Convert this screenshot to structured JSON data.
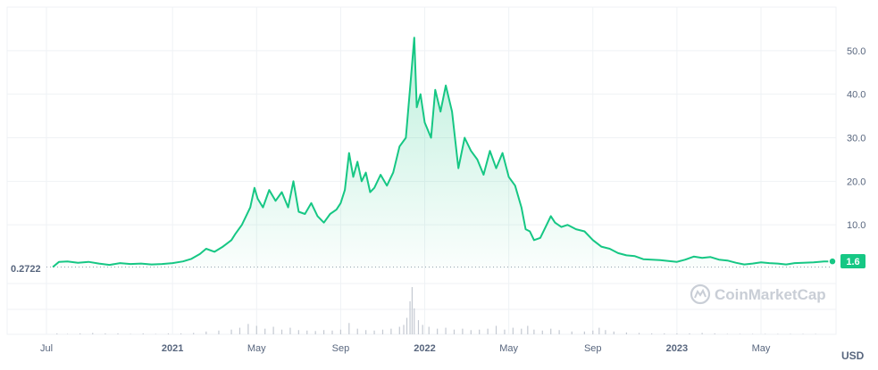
{
  "chart_data": {
    "type": "area",
    "currency_label": "USD",
    "watermark": "CoinMarketCap",
    "start_value_label": "0.2722",
    "current_value_label": "1.6",
    "colors": {
      "line": "#16c784",
      "badge": "#16c784",
      "text": "#58667e",
      "grid": "#eff2f5"
    },
    "ylim": [
      0,
      60
    ],
    "y_ticks": [
      "50.0",
      "40.0",
      "30.0",
      "20.0",
      "10.0"
    ],
    "x_ticks": [
      {
        "label": "Jul",
        "t": 0,
        "bold": false
      },
      {
        "label": "2021",
        "t": 6,
        "bold": true
      },
      {
        "label": "May",
        "t": 10,
        "bold": false
      },
      {
        "label": "Sep",
        "t": 14,
        "bold": false
      },
      {
        "label": "2022",
        "t": 18,
        "bold": true
      },
      {
        "label": "May",
        "t": 22,
        "bold": false
      },
      {
        "label": "Sep",
        "t": 26,
        "bold": false
      },
      {
        "label": "2023",
        "t": 30,
        "bold": true
      },
      {
        "label": "May",
        "t": 34,
        "bold": false
      }
    ],
    "t_range": [
      0,
      37.4
    ],
    "series": [
      {
        "values": [
          [
            0.3,
            0.3
          ],
          [
            0.6,
            1.5
          ],
          [
            1.0,
            1.6
          ],
          [
            1.5,
            1.3
          ],
          [
            2.0,
            1.5
          ],
          [
            2.5,
            1.1
          ],
          [
            3.0,
            0.8
          ],
          [
            3.5,
            1.2
          ],
          [
            4.0,
            1.0
          ],
          [
            4.5,
            1.1
          ],
          [
            5.0,
            0.9
          ],
          [
            5.5,
            1.0
          ],
          [
            6.0,
            1.2
          ],
          [
            6.5,
            1.6
          ],
          [
            6.9,
            2.2
          ],
          [
            7.3,
            3.3
          ],
          [
            7.6,
            4.5
          ],
          [
            8.0,
            3.8
          ],
          [
            8.4,
            5.0
          ],
          [
            8.8,
            6.5
          ],
          [
            9.0,
            8.0
          ],
          [
            9.3,
            10.0
          ],
          [
            9.5,
            12.0
          ],
          [
            9.7,
            14.0
          ],
          [
            9.9,
            18.5
          ],
          [
            10.05,
            16.0
          ],
          [
            10.3,
            14.0
          ],
          [
            10.6,
            18.0
          ],
          [
            10.9,
            15.5
          ],
          [
            11.2,
            17.5
          ],
          [
            11.5,
            14.0
          ],
          [
            11.75,
            20.0
          ],
          [
            12.0,
            13.0
          ],
          [
            12.3,
            12.5
          ],
          [
            12.6,
            15.0
          ],
          [
            12.9,
            12.0
          ],
          [
            13.2,
            10.5
          ],
          [
            13.5,
            12.5
          ],
          [
            13.8,
            13.5
          ],
          [
            14.0,
            15.0
          ],
          [
            14.2,
            18.0
          ],
          [
            14.4,
            26.5
          ],
          [
            14.6,
            21.0
          ],
          [
            14.8,
            24.5
          ],
          [
            15.0,
            20.0
          ],
          [
            15.2,
            22.0
          ],
          [
            15.4,
            17.5
          ],
          [
            15.6,
            18.5
          ],
          [
            15.9,
            21.5
          ],
          [
            16.2,
            19.0
          ],
          [
            16.5,
            22.0
          ],
          [
            16.8,
            28.0
          ],
          [
            17.1,
            30.0
          ],
          [
            17.35,
            44.0
          ],
          [
            17.5,
            53.0
          ],
          [
            17.62,
            37.0
          ],
          [
            17.8,
            40.0
          ],
          [
            18.0,
            33.5
          ],
          [
            18.3,
            30.0
          ],
          [
            18.5,
            41.0
          ],
          [
            18.75,
            36.0
          ],
          [
            19.0,
            42.0
          ],
          [
            19.3,
            36.0
          ],
          [
            19.6,
            23.0
          ],
          [
            19.9,
            30.0
          ],
          [
            20.2,
            27.0
          ],
          [
            20.5,
            25.0
          ],
          [
            20.8,
            21.5
          ],
          [
            21.1,
            27.0
          ],
          [
            21.4,
            23.0
          ],
          [
            21.7,
            26.5
          ],
          [
            22.0,
            21.0
          ],
          [
            22.3,
            19.0
          ],
          [
            22.6,
            14.0
          ],
          [
            22.8,
            9.0
          ],
          [
            23.0,
            8.5
          ],
          [
            23.2,
            6.5
          ],
          [
            23.5,
            7.0
          ],
          [
            23.8,
            10.0
          ],
          [
            24.0,
            12.0
          ],
          [
            24.2,
            10.5
          ],
          [
            24.5,
            9.5
          ],
          [
            24.8,
            10.0
          ],
          [
            25.2,
            9.0
          ],
          [
            25.6,
            8.5
          ],
          [
            26.0,
            6.5
          ],
          [
            26.4,
            5.0
          ],
          [
            26.8,
            4.5
          ],
          [
            27.2,
            3.5
          ],
          [
            27.6,
            3.0
          ],
          [
            28.0,
            2.8
          ],
          [
            28.4,
            2.1
          ],
          [
            28.8,
            2.0
          ],
          [
            29.2,
            1.9
          ],
          [
            29.6,
            1.7
          ],
          [
            30.0,
            1.5
          ],
          [
            30.4,
            2.0
          ],
          [
            30.8,
            2.7
          ],
          [
            31.2,
            2.4
          ],
          [
            31.6,
            2.6
          ],
          [
            32.0,
            2.0
          ],
          [
            32.4,
            1.8
          ],
          [
            32.8,
            1.3
          ],
          [
            33.2,
            0.9
          ],
          [
            33.6,
            1.1
          ],
          [
            34.0,
            1.4
          ],
          [
            34.4,
            1.2
          ],
          [
            34.8,
            1.1
          ],
          [
            35.2,
            0.9
          ],
          [
            35.6,
            1.2
          ],
          [
            36.0,
            1.3
          ],
          [
            36.5,
            1.4
          ],
          [
            37.0,
            1.6
          ],
          [
            37.4,
            1.6
          ]
        ]
      }
    ],
    "volume": {
      "scale_max": 100,
      "values": [
        [
          0.5,
          2
        ],
        [
          1.0,
          1
        ],
        [
          1.6,
          2
        ],
        [
          2.2,
          3
        ],
        [
          2.8,
          2
        ],
        [
          3.4,
          2
        ],
        [
          4.0,
          1
        ],
        [
          4.6,
          2
        ],
        [
          5.2,
          1
        ],
        [
          5.8,
          2
        ],
        [
          6.4,
          2
        ],
        [
          7.0,
          3
        ],
        [
          7.6,
          6
        ],
        [
          8.2,
          8
        ],
        [
          8.8,
          10
        ],
        [
          9.2,
          14
        ],
        [
          9.6,
          22
        ],
        [
          10.0,
          18
        ],
        [
          10.4,
          12
        ],
        [
          10.8,
          16
        ],
        [
          11.2,
          10
        ],
        [
          11.6,
          14
        ],
        [
          12.0,
          9
        ],
        [
          12.4,
          8
        ],
        [
          12.8,
          7
        ],
        [
          13.2,
          9
        ],
        [
          13.6,
          8
        ],
        [
          14.0,
          10
        ],
        [
          14.4,
          24
        ],
        [
          14.8,
          12
        ],
        [
          15.2,
          9
        ],
        [
          15.6,
          8
        ],
        [
          16.0,
          10
        ],
        [
          16.4,
          12
        ],
        [
          16.8,
          16
        ],
        [
          17.0,
          20
        ],
        [
          17.15,
          35
        ],
        [
          17.3,
          70
        ],
        [
          17.4,
          100
        ],
        [
          17.5,
          55
        ],
        [
          17.7,
          30
        ],
        [
          17.9,
          20
        ],
        [
          18.2,
          16
        ],
        [
          18.6,
          12
        ],
        [
          19.0,
          14
        ],
        [
          19.4,
          10
        ],
        [
          19.8,
          12
        ],
        [
          20.2,
          9
        ],
        [
          20.6,
          10
        ],
        [
          21.0,
          12
        ],
        [
          21.4,
          18
        ],
        [
          21.8,
          10
        ],
        [
          22.2,
          14
        ],
        [
          22.6,
          12
        ],
        [
          22.9,
          18
        ],
        [
          23.2,
          10
        ],
        [
          23.6,
          8
        ],
        [
          24.0,
          12
        ],
        [
          24.4,
          9
        ],
        [
          25.0,
          6
        ],
        [
          25.6,
          6
        ],
        [
          26.0,
          8
        ],
        [
          26.3,
          14
        ],
        [
          26.6,
          9
        ],
        [
          27.0,
          6
        ],
        [
          27.6,
          4
        ],
        [
          28.2,
          3
        ],
        [
          28.8,
          2
        ],
        [
          29.4,
          2
        ],
        [
          30.0,
          2
        ],
        [
          30.6,
          2
        ],
        [
          31.2,
          3
        ],
        [
          31.8,
          2
        ],
        [
          32.4,
          1
        ],
        [
          33.0,
          1
        ],
        [
          33.6,
          1
        ],
        [
          34.2,
          1
        ],
        [
          34.8,
          1
        ],
        [
          35.4,
          1
        ],
        [
          36.0,
          1
        ],
        [
          36.6,
          1
        ]
      ]
    }
  }
}
